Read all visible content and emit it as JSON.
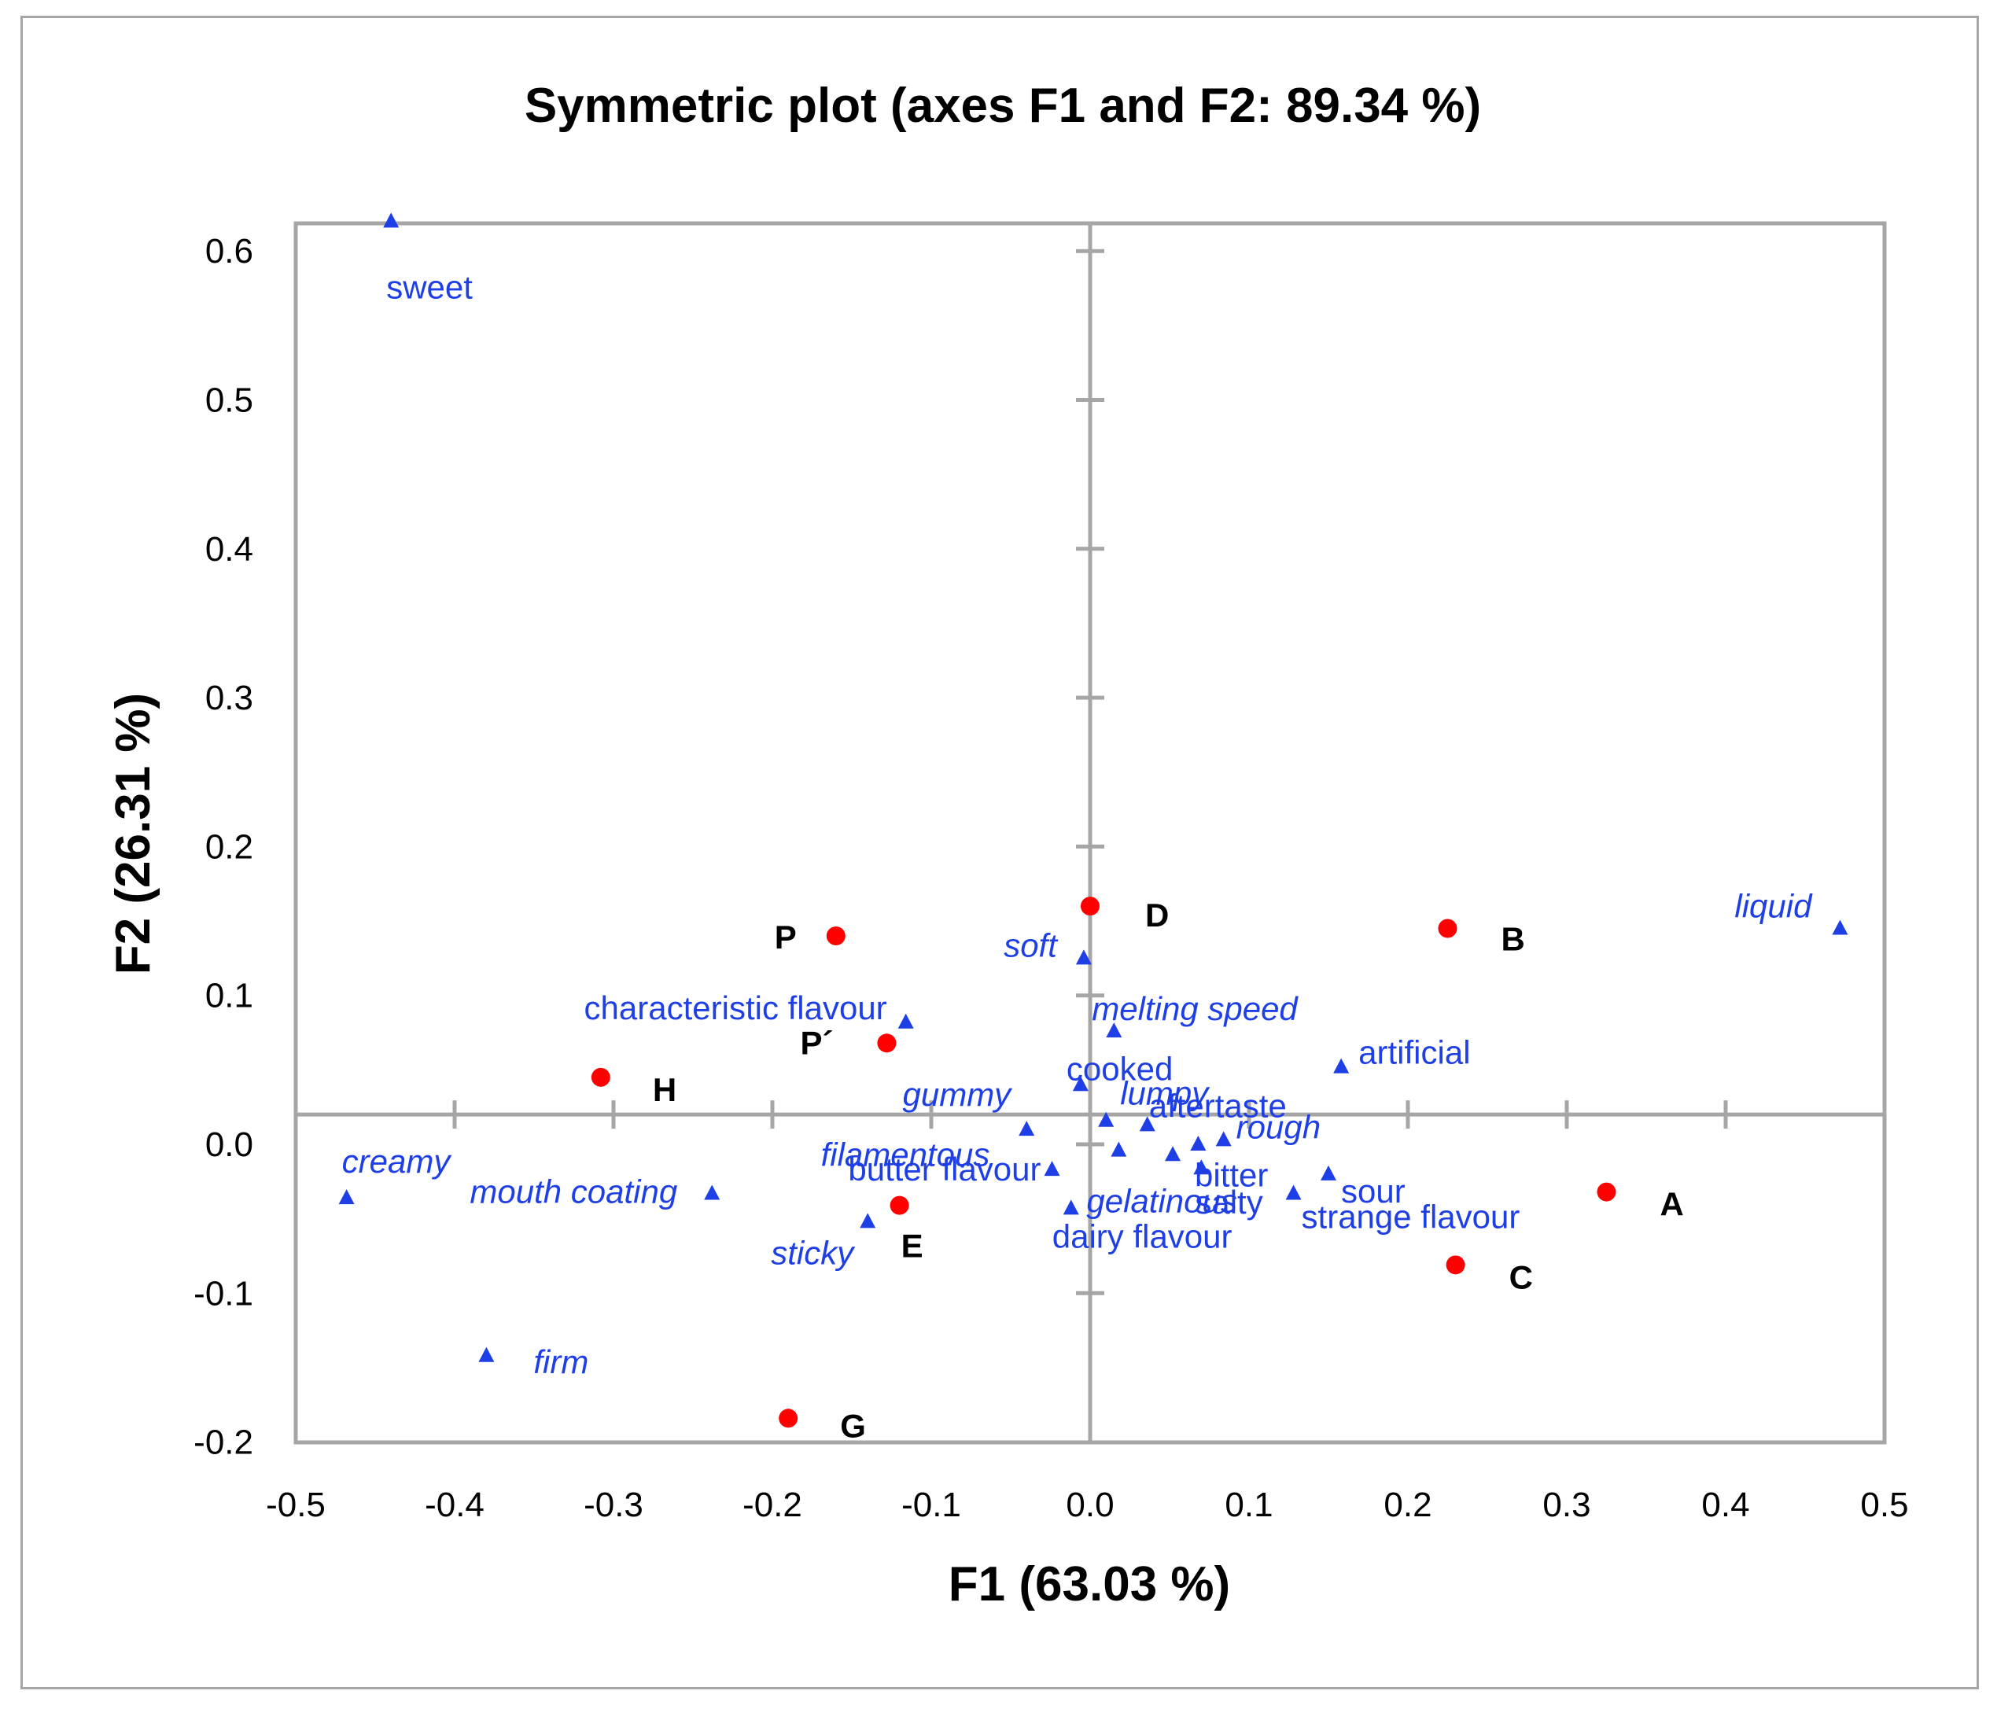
{
  "chart_data": {
    "type": "scatter",
    "title": "Symmetric plot  (axes F1 and F2: 89.34 %)",
    "xlabel": "F1 (63.03 %)",
    "ylabel": "F2 (26.31 %)",
    "xlim": [
      -0.5,
      0.5
    ],
    "ylim": [
      -0.2,
      0.6
    ],
    "x_ticks": [
      "-0.5",
      "-0.4",
      "-0.3",
      "-0.2",
      "-0.1",
      "0.0",
      "0.1",
      "0.2",
      "0.3",
      "0.4",
      "0.5"
    ],
    "y_ticks": [
      "-0.2",
      "-0.1",
      "0.0",
      "0.1",
      "0.2",
      "0.3",
      "0.4",
      "0.5",
      "0.6"
    ],
    "origin_x": 0.0,
    "origin_y": 0.02,
    "colors": {
      "samples": "#ff0000",
      "attributes": "#1f3fe6",
      "axes": "#a6a6a6"
    },
    "series": [
      {
        "name": "samples",
        "marker": "circle",
        "points": [
          {
            "label": "P",
            "x": -0.16,
            "y": 0.14
          },
          {
            "label": "D",
            "x": 0.0,
            "y": 0.16
          },
          {
            "label": "B",
            "x": 0.225,
            "y": 0.145
          },
          {
            "label": "P´",
            "x": -0.128,
            "y": 0.068
          },
          {
            "label": "H",
            "x": -0.308,
            "y": 0.045
          },
          {
            "label": "A",
            "x": 0.325,
            "y": -0.032
          },
          {
            "label": "C",
            "x": 0.23,
            "y": -0.081
          },
          {
            "label": "E",
            "x": -0.12,
            "y": -0.041
          },
          {
            "label": "G",
            "x": -0.19,
            "y": -0.184
          }
        ]
      },
      {
        "name": "attributes",
        "marker": "triangle",
        "points": [
          {
            "label": "sweet",
            "x": -0.44,
            "y": 0.62,
            "italic": false
          },
          {
            "label": "liquid",
            "x": 0.472,
            "y": 0.145,
            "italic": true
          },
          {
            "label": "soft",
            "x": -0.004,
            "y": 0.125,
            "italic": true
          },
          {
            "label": "characteristic flavour",
            "x": -0.116,
            "y": 0.082,
            "italic": false
          },
          {
            "label": "melting speed",
            "x": 0.015,
            "y": 0.076,
            "italic": true
          },
          {
            "label": "artificial",
            "x": 0.158,
            "y": 0.052,
            "italic": false
          },
          {
            "label": "cooked",
            "x": -0.006,
            "y": 0.04,
            "italic": false
          },
          {
            "label": "gummy",
            "x": -0.04,
            "y": 0.01,
            "italic": true
          },
          {
            "label": "lumpy",
            "x": 0.01,
            "y": 0.016,
            "italic": true
          },
          {
            "label": "aftertaste",
            "x": 0.036,
            "y": 0.013,
            "italic": false
          },
          {
            "label": "rough",
            "x": 0.084,
            "y": 0.003,
            "italic": true
          },
          {
            "label": "filamentous",
            "x": 0.018,
            "y": -0.004,
            "italic": true
          },
          {
            "label": "bitter",
            "x": 0.052,
            "y": -0.007,
            "italic": false
          },
          {
            "label": "salty",
            "x": 0.068,
            "y": 0.0,
            "italic": false
          },
          {
            "label": "butter flavour",
            "x": -0.024,
            "y": -0.017,
            "italic": false
          },
          {
            "label": "gelatinous",
            "x": 0.07,
            "y": -0.016,
            "italic": true
          },
          {
            "label": "sour",
            "x": 0.15,
            "y": -0.02,
            "italic": false
          },
          {
            "label": "strange flavour",
            "x": 0.128,
            "y": -0.033,
            "italic": false
          },
          {
            "label": "dairy flavour",
            "x": -0.012,
            "y": -0.043,
            "italic": false
          },
          {
            "label": "mouth coating",
            "x": -0.238,
            "y": -0.033,
            "italic": true
          },
          {
            "label": "creamy",
            "x": -0.468,
            "y": -0.036,
            "italic": true
          },
          {
            "label": "sticky",
            "x": -0.14,
            "y": -0.052,
            "italic": true
          },
          {
            "label": "firm",
            "x": -0.38,
            "y": -0.142,
            "italic": true
          }
        ]
      }
    ]
  }
}
